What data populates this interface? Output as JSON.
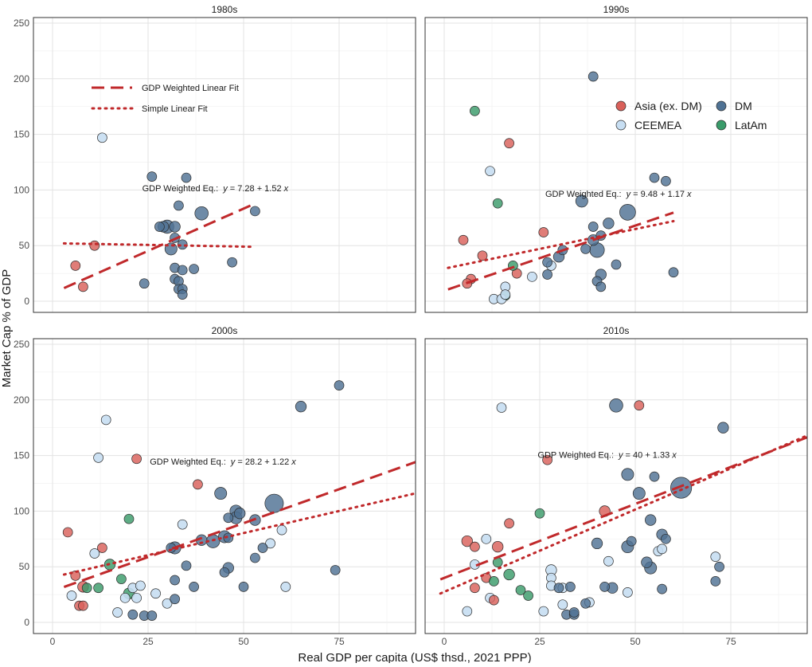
{
  "chart_data": {
    "type": "scatter",
    "layout": "facet 2x2",
    "ylabel": "Market Cap % of GDP",
    "xlabel": "Real GDP per capita (US$ thsd., 2021 PPP)",
    "xlim": [
      -5,
      95
    ],
    "ylim": [
      -10,
      255
    ],
    "xticks": [
      0,
      25,
      50,
      75
    ],
    "yticks": [
      0,
      50,
      100,
      150,
      200,
      250
    ],
    "colors": {
      "Asia": "#d9605a",
      "CEEMEA": "#c7def2",
      "DM": "#4f7294",
      "LatAm": "#3a9b6a",
      "fit": "#c0292b"
    },
    "line_legend": [
      {
        "key": "weighted",
        "label": "GDP Weighted Linear Fit"
      },
      {
        "key": "simple",
        "label": "Simple Linear Fit"
      }
    ],
    "region_legend": [
      {
        "key": "Asia",
        "label": "Asia (ex. DM)"
      },
      {
        "key": "DM",
        "label": "DM"
      },
      {
        "key": "CEEMEA",
        "label": "CEEMEA"
      },
      {
        "key": "LatAm",
        "label": "LatAm"
      }
    ],
    "panels": [
      {
        "title": "1980s",
        "eq_label": "GDP Weighted  Eq.:",
        "eq_formula": "y = 7.28 + 1.52 x",
        "eq_at": [
          44,
          99
        ],
        "weighted_fit": {
          "intercept": 7.28,
          "slope": 1.52,
          "x0": 3,
          "x1": 52
        },
        "simple_fit": {
          "y0": 52,
          "y1": 49,
          "x0": 3,
          "x1": 52
        },
        "points": [
          [
            13,
            147,
            "CEEMEA",
            0.5
          ],
          [
            8,
            13,
            "Asia",
            0.5
          ],
          [
            6,
            32,
            "Asia",
            0.5
          ],
          [
            11,
            50,
            "Asia",
            0.5
          ],
          [
            26,
            112,
            "DM",
            0.5
          ],
          [
            35,
            111,
            "DM",
            0.5
          ],
          [
            32,
            67,
            "DM",
            0.6
          ],
          [
            29,
            67,
            "DM",
            0.6
          ],
          [
            28,
            67,
            "DM",
            0.5
          ],
          [
            30,
            67,
            "DM",
            0.8
          ],
          [
            39,
            79,
            "DM",
            0.8
          ],
          [
            33,
            86,
            "DM",
            0.5
          ],
          [
            32,
            57,
            "DM",
            0.5
          ],
          [
            34,
            51,
            "DM",
            0.5
          ],
          [
            31,
            47,
            "DM",
            0.7
          ],
          [
            32,
            30,
            "DM",
            0.5
          ],
          [
            34,
            28,
            "DM",
            0.5
          ],
          [
            37,
            29,
            "DM",
            0.5
          ],
          [
            47,
            35,
            "DM",
            0.5
          ],
          [
            53,
            81,
            "DM",
            0.5
          ],
          [
            24,
            16,
            "DM",
            0.5
          ],
          [
            32,
            20,
            "DM",
            0.5
          ],
          [
            33,
            18,
            "DM",
            0.5
          ],
          [
            33,
            11,
            "DM",
            0.5
          ],
          [
            34,
            11,
            "DM",
            0.5
          ],
          [
            34,
            6,
            "DM",
            0.5
          ]
        ]
      },
      {
        "title": "1990s",
        "eq_label": "GDP Weighted  Eq.:",
        "eq_formula": "y = 9.48 + 1.17 x",
        "eq_at": [
          47,
          94
        ],
        "weighted_fit": {
          "intercept": 9.48,
          "slope": 1.17,
          "x0": 1,
          "x1": 60
        },
        "simple_fit": {
          "y0": 30,
          "y1": 72,
          "x0": 1,
          "x1": 60
        },
        "points": [
          [
            8,
            171,
            "LatAm",
            0.5
          ],
          [
            17,
            142,
            "Asia",
            0.5
          ],
          [
            12,
            117,
            "CEEMEA",
            0.5
          ],
          [
            14,
            88,
            "LatAm",
            0.5
          ],
          [
            5,
            55,
            "Asia",
            0.5
          ],
          [
            10,
            41,
            "Asia",
            0.5
          ],
          [
            7,
            20,
            "Asia",
            0.5
          ],
          [
            6,
            16,
            "Asia",
            0.5
          ],
          [
            26,
            62,
            "Asia",
            0.5
          ],
          [
            19,
            25,
            "Asia",
            0.5
          ],
          [
            18,
            32,
            "LatAm",
            0.5
          ],
          [
            16,
            5,
            "LatAm",
            0.5
          ],
          [
            13,
            2,
            "CEEMEA",
            0.5
          ],
          [
            15,
            2,
            "CEEMEA",
            0.5
          ],
          [
            16,
            13,
            "CEEMEA",
            0.5
          ],
          [
            16,
            6,
            "CEEMEA",
            0.5
          ],
          [
            23,
            22,
            "CEEMEA",
            0.5
          ],
          [
            28,
            32,
            "CEEMEA",
            0.5
          ],
          [
            39,
            202,
            "DM",
            0.5
          ],
          [
            55,
            111,
            "DM",
            0.5
          ],
          [
            58,
            108,
            "DM",
            0.5
          ],
          [
            36,
            90,
            "DM",
            0.7
          ],
          [
            48,
            80,
            "DM",
            1.0
          ],
          [
            39,
            67,
            "DM",
            0.5
          ],
          [
            43,
            70,
            "DM",
            0.6
          ],
          [
            39,
            55,
            "DM",
            0.6
          ],
          [
            41,
            59,
            "DM",
            0.5
          ],
          [
            40,
            46,
            "DM",
            0.9
          ],
          [
            37,
            47,
            "DM",
            0.5
          ],
          [
            31,
            46,
            "DM",
            0.5
          ],
          [
            30,
            40,
            "DM",
            0.6
          ],
          [
            27,
            35,
            "DM",
            0.5
          ],
          [
            41,
            24,
            "DM",
            0.6
          ],
          [
            40,
            18,
            "DM",
            0.5
          ],
          [
            41,
            13,
            "DM",
            0.5
          ],
          [
            45,
            33,
            "DM",
            0.5
          ],
          [
            60,
            26,
            "DM",
            0.5
          ],
          [
            27,
            24,
            "DM",
            0.5
          ]
        ]
      },
      {
        "title": "2000s",
        "eq_label": "GDP Weighted  Eq.:",
        "eq_formula": "y = 28.2 + 1.22 x",
        "eq_at": [
          46,
          142
        ],
        "weighted_fit": {
          "intercept": 28.2,
          "slope": 1.22,
          "x0": 3,
          "x1": 95
        },
        "simple_fit": {
          "y0": 43,
          "y1": 116,
          "x0": 3,
          "x1": 95
        },
        "points": [
          [
            14,
            182,
            "CEEMEA",
            0.5
          ],
          [
            12,
            148,
            "CEEMEA",
            0.5
          ],
          [
            22,
            147,
            "Asia",
            0.5
          ],
          [
            4,
            81,
            "Asia",
            0.5
          ],
          [
            20,
            93,
            "LatAm",
            0.5
          ],
          [
            38,
            124,
            "Asia",
            0.5
          ],
          [
            13,
            67,
            "Asia",
            0.5
          ],
          [
            11,
            62,
            "CEEMEA",
            0.5
          ],
          [
            6,
            42,
            "Asia",
            0.5
          ],
          [
            5,
            24,
            "CEEMEA",
            0.5
          ],
          [
            8,
            32,
            "Asia",
            0.6
          ],
          [
            9,
            31,
            "LatAm",
            0.5
          ],
          [
            15,
            52,
            "LatAm",
            0.6
          ],
          [
            12,
            31,
            "LatAm",
            0.5
          ],
          [
            7,
            15,
            "Asia",
            0.5
          ],
          [
            8,
            15,
            "Asia",
            0.5
          ],
          [
            18,
            39,
            "LatAm",
            0.5
          ],
          [
            20,
            26,
            "LatAm",
            0.6
          ],
          [
            21,
            31,
            "CEEMEA",
            0.5
          ],
          [
            19,
            22,
            "CEEMEA",
            0.5
          ],
          [
            22,
            22,
            "CEEMEA",
            0.5
          ],
          [
            23,
            33,
            "CEEMEA",
            0.5
          ],
          [
            17,
            9,
            "CEEMEA",
            0.5
          ],
          [
            27,
            26,
            "CEEMEA",
            0.5
          ],
          [
            30,
            17,
            "CEEMEA",
            0.5
          ],
          [
            21,
            7,
            "DM",
            0.5
          ],
          [
            24,
            6,
            "DM",
            0.5
          ],
          [
            26,
            6,
            "DM",
            0.5
          ],
          [
            34,
            88,
            "CEEMEA",
            0.5
          ],
          [
            61,
            32,
            "CEEMEA",
            0.5
          ],
          [
            57,
            71,
            "CEEMEA",
            0.5
          ],
          [
            60,
            83,
            "CEEMEA",
            0.5
          ],
          [
            75,
            213,
            "DM",
            0.5
          ],
          [
            65,
            194,
            "DM",
            0.6
          ],
          [
            58,
            107,
            "DM",
            1.2
          ],
          [
            44,
            116,
            "DM",
            0.7
          ],
          [
            48,
            100,
            "DM",
            0.7
          ],
          [
            49,
            98,
            "DM",
            0.6
          ],
          [
            48,
            94,
            "DM",
            0.7
          ],
          [
            46,
            94,
            "DM",
            0.5
          ],
          [
            53,
            92,
            "DM",
            0.6
          ],
          [
            45,
            77,
            "DM",
            0.7
          ],
          [
            46,
            76,
            "DM",
            0.5
          ],
          [
            42,
            73,
            "DM",
            0.8
          ],
          [
            39,
            74,
            "DM",
            0.6
          ],
          [
            31,
            67,
            "DM",
            0.5
          ],
          [
            32,
            67,
            "DM",
            0.7
          ],
          [
            35,
            51,
            "DM",
            0.5
          ],
          [
            46,
            49,
            "DM",
            0.6
          ],
          [
            45,
            45,
            "DM",
            0.5
          ],
          [
            50,
            32,
            "DM",
            0.5
          ],
          [
            53,
            58,
            "DM",
            0.5
          ],
          [
            55,
            67,
            "DM",
            0.5
          ],
          [
            37,
            32,
            "DM",
            0.5
          ],
          [
            32,
            38,
            "DM",
            0.5
          ],
          [
            32,
            21,
            "DM",
            0.5
          ],
          [
            74,
            47,
            "DM",
            0.5
          ]
        ]
      },
      {
        "title": "2010s",
        "eq_label": "GDP Weighted  Eq.:",
        "eq_formula": "y = 40 + 1.33 x",
        "eq_at": [
          45,
          148
        ],
        "weighted_fit": {
          "intercept": 40,
          "slope": 1.33,
          "x0": -1,
          "x1": 95
        },
        "simple_fit": {
          "y0": 26,
          "y1": 168,
          "x0": -1,
          "x1": 95
        },
        "points": [
          [
            15,
            193,
            "CEEMEA",
            0.5
          ],
          [
            27,
            146,
            "Asia",
            0.5
          ],
          [
            17,
            89,
            "Asia",
            0.5
          ],
          [
            25,
            98,
            "LatAm",
            0.5
          ],
          [
            6,
            73,
            "Asia",
            0.6
          ],
          [
            8,
            68,
            "Asia",
            0.5
          ],
          [
            11,
            75,
            "CEEMEA",
            0.5
          ],
          [
            14,
            68,
            "Asia",
            0.6
          ],
          [
            8,
            52,
            "CEEMEA",
            0.5
          ],
          [
            14,
            54,
            "LatAm",
            0.5
          ],
          [
            11,
            40,
            "Asia",
            0.5
          ],
          [
            13,
            37,
            "LatAm",
            0.5
          ],
          [
            8,
            31,
            "Asia",
            0.5
          ],
          [
            12,
            22,
            "CEEMEA",
            0.5
          ],
          [
            13,
            20,
            "Asia",
            0.5
          ],
          [
            17,
            43,
            "LatAm",
            0.6
          ],
          [
            20,
            29,
            "LatAm",
            0.5
          ],
          [
            22,
            24,
            "LatAm",
            0.5
          ],
          [
            6,
            10,
            "CEEMEA",
            0.5
          ],
          [
            26,
            10,
            "CEEMEA",
            0.5
          ],
          [
            28,
            47,
            "CEEMEA",
            0.6
          ],
          [
            28,
            40,
            "CEEMEA",
            0.5
          ],
          [
            28,
            33,
            "CEEMEA",
            0.5
          ],
          [
            31,
            31,
            "CEEMEA",
            0.5
          ],
          [
            31,
            16,
            "CEEMEA",
            0.5
          ],
          [
            38,
            18,
            "CEEMEA",
            0.5
          ],
          [
            43,
            55,
            "CEEMEA",
            0.5
          ],
          [
            48,
            27,
            "CEEMEA",
            0.5
          ],
          [
            56,
            64,
            "CEEMEA",
            0.5
          ],
          [
            57,
            66,
            "CEEMEA",
            0.5
          ],
          [
            71,
            59,
            "CEEMEA",
            0.5
          ],
          [
            42,
            100,
            "Asia",
            0.6
          ],
          [
            51,
            195,
            "Asia",
            0.5
          ],
          [
            45,
            195,
            "DM",
            0.8
          ],
          [
            73,
            175,
            "DM",
            0.6
          ],
          [
            48,
            133,
            "DM",
            0.7
          ],
          [
            62,
            121,
            "DM",
            1.4
          ],
          [
            55,
            131,
            "DM",
            0.5
          ],
          [
            51,
            116,
            "DM",
            0.7
          ],
          [
            54,
            92,
            "DM",
            0.6
          ],
          [
            49,
            73,
            "DM",
            0.5
          ],
          [
            48,
            68,
            "DM",
            0.7
          ],
          [
            57,
            79,
            "DM",
            0.6
          ],
          [
            58,
            75,
            "DM",
            0.5
          ],
          [
            40,
            71,
            "DM",
            0.6
          ],
          [
            53,
            54,
            "DM",
            0.6
          ],
          [
            54,
            49,
            "DM",
            0.7
          ],
          [
            57,
            30,
            "DM",
            0.5
          ],
          [
            42,
            32,
            "DM",
            0.5
          ],
          [
            44,
            31,
            "DM",
            0.6
          ],
          [
            33,
            32,
            "DM",
            0.5
          ],
          [
            30,
            31,
            "DM",
            0.5
          ],
          [
            37,
            17,
            "DM",
            0.5
          ],
          [
            32,
            7,
            "DM",
            0.5
          ],
          [
            34,
            7,
            "DM",
            0.5
          ],
          [
            34,
            9,
            "DM",
            0.5
          ],
          [
            72,
            50,
            "DM",
            0.5
          ],
          [
            71,
            37,
            "DM",
            0.5
          ]
        ]
      }
    ]
  }
}
